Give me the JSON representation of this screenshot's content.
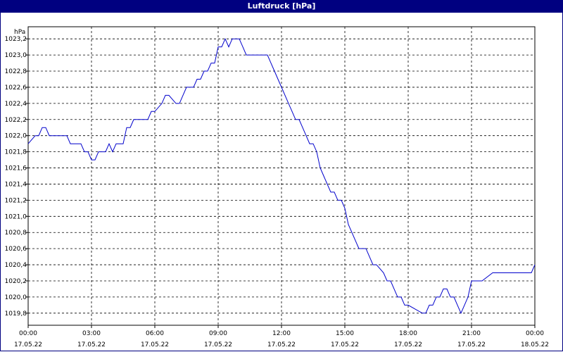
{
  "chart_data": {
    "type": "line",
    "title": "Luftdruck [hPa]",
    "ylabel": "hPa",
    "ylim": [
      1019.65,
      1023.35
    ],
    "yticks": [
      "1019,8",
      "1020,0",
      "1020,2",
      "1020,4",
      "1020,6",
      "1020,8",
      "1021,0",
      "1021,2",
      "1021,4",
      "1021,6",
      "1021,8",
      "1022,0",
      "1022,2",
      "1022,4",
      "1022,6",
      "1022,8",
      "1023,0",
      "1023,2"
    ],
    "xlim": [
      "17.05.22 00:00",
      "18.05.22 00:00"
    ],
    "xticks": [
      {
        "time": "00:00",
        "date": "17.05.22"
      },
      {
        "time": "03:00",
        "date": "17.05.22"
      },
      {
        "time": "06:00",
        "date": "17.05.22"
      },
      {
        "time": "09:00",
        "date": "17.05.22"
      },
      {
        "time": "12:00",
        "date": "17.05.22"
      },
      {
        "time": "15:00",
        "date": "17.05.22"
      },
      {
        "time": "18:00",
        "date": "17.05.22"
      },
      {
        "time": "21:00",
        "date": "17.05.22"
      },
      {
        "time": "00:00",
        "date": "18.05.22"
      }
    ],
    "grid": true,
    "series": [
      {
        "color": "#0000cc",
        "x": [
          "00:00",
          "00:20",
          "00:30",
          "00:40",
          "00:50",
          "01:00",
          "01:10",
          "01:30",
          "01:50",
          "02:00",
          "02:10",
          "02:30",
          "02:40",
          "02:50",
          "03:00",
          "03:10",
          "03:20",
          "03:30",
          "03:40",
          "03:50",
          "04:00",
          "04:10",
          "04:30",
          "04:40",
          "04:50",
          "05:00",
          "05:30",
          "05:40",
          "05:50",
          "06:00",
          "06:20",
          "06:30",
          "06:40",
          "07:00",
          "07:10",
          "07:30",
          "07:40",
          "07:50",
          "08:00",
          "08:10",
          "08:20",
          "08:30",
          "08:40",
          "08:50",
          "09:00",
          "09:10",
          "09:20",
          "09:30",
          "09:40",
          "10:00",
          "10:10",
          "10:20",
          "10:30",
          "11:00",
          "11:20",
          "11:30",
          "11:40",
          "11:50",
          "12:00",
          "12:10",
          "12:20",
          "12:30",
          "12:40",
          "12:50",
          "13:00",
          "13:10",
          "13:20",
          "13:30",
          "13:40",
          "13:50",
          "14:00",
          "14:10",
          "14:20",
          "14:30",
          "14:40",
          "14:50",
          "15:00",
          "15:10",
          "15:20",
          "15:30",
          "15:40",
          "15:50",
          "16:00",
          "16:20",
          "16:30",
          "16:50",
          "17:00",
          "17:10",
          "17:20",
          "17:30",
          "17:40",
          "17:50",
          "18:00",
          "18:40",
          "18:50",
          "19:00",
          "19:10",
          "19:20",
          "19:30",
          "19:40",
          "19:50",
          "20:00",
          "20:10",
          "20:20",
          "20:30",
          "20:40",
          "20:50",
          "21:00",
          "21:20",
          "21:30",
          "22:00",
          "22:30",
          "22:50",
          "23:00",
          "23:30",
          "23:50",
          "24:00"
        ],
        "y": [
          1021.9,
          1022.0,
          1022.0,
          1022.1,
          1022.1,
          1022.0,
          1022.0,
          1022.0,
          1022.0,
          1021.9,
          1021.9,
          1021.9,
          1021.8,
          1021.8,
          1021.7,
          1021.7,
          1021.8,
          1021.8,
          1021.8,
          1021.9,
          1021.8,
          1021.9,
          1021.9,
          1022.1,
          1022.1,
          1022.2,
          1022.2,
          1022.2,
          1022.3,
          1022.3,
          1022.4,
          1022.5,
          1022.5,
          1022.4,
          1022.4,
          1022.6,
          1022.6,
          1022.6,
          1022.7,
          1022.7,
          1022.8,
          1022.8,
          1022.9,
          1022.9,
          1023.1,
          1023.1,
          1023.2,
          1023.1,
          1023.2,
          1023.2,
          1023.1,
          1023.0,
          1023.0,
          1023.0,
          1023.0,
          1022.9,
          1022.8,
          1022.7,
          1022.6,
          1022.5,
          1022.4,
          1022.3,
          1022.2,
          1022.2,
          1022.1,
          1022.0,
          1021.9,
          1021.9,
          1021.8,
          1021.6,
          1021.5,
          1021.4,
          1021.3,
          1021.3,
          1021.2,
          1021.2,
          1021.1,
          1020.9,
          1020.8,
          1020.7,
          1020.6,
          1020.6,
          1020.6,
          1020.4,
          1020.4,
          1020.3,
          1020.2,
          1020.2,
          1020.1,
          1020.0,
          1020.0,
          1019.9,
          1019.9,
          1019.8,
          1019.8,
          1019.9,
          1019.9,
          1020.0,
          1020.0,
          1020.1,
          1020.1,
          1020.0,
          1020.0,
          1019.9,
          1019.8,
          1019.9,
          1020.0,
          1020.2,
          1020.2,
          1020.2,
          1020.3,
          1020.3,
          1020.3,
          1020.3,
          1020.3,
          1020.3,
          1020.4
        ]
      }
    ]
  }
}
